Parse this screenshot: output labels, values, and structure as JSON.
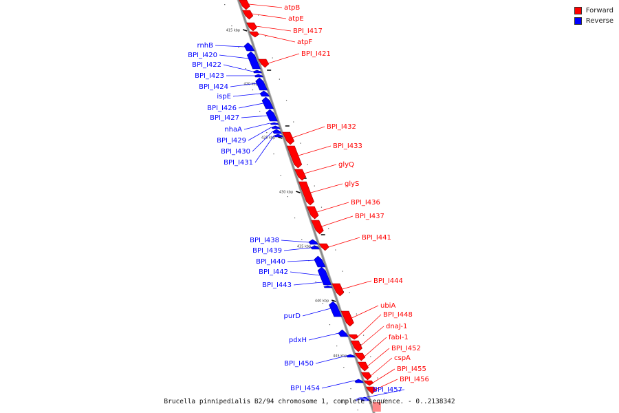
{
  "colors": {
    "forward": "#ff0000",
    "reverse": "#0000ff",
    "backbone": "#888888"
  },
  "legend": [
    {
      "label": "Forward",
      "color": "#ff0000"
    },
    {
      "label": "Reverse",
      "color": "#0000ff"
    }
  ],
  "caption": "Brucella pinnipedialis B2/94 chromosome 1, complete sequence. - 0..2138342",
  "ticks": [
    "415 kbp",
    "420 kbp",
    "425 kbp",
    "430 kbp",
    "435 kbp",
    "440 kbp",
    "445 kbp"
  ],
  "genes": [
    {
      "name": "atpB",
      "strand": "forward"
    },
    {
      "name": "atpE",
      "strand": "forward"
    },
    {
      "name": "BPI_I417",
      "strand": "forward"
    },
    {
      "name": "atpF",
      "strand": "forward"
    },
    {
      "name": "BPI_I421",
      "strand": "forward"
    },
    {
      "name": "rnhB",
      "strand": "reverse"
    },
    {
      "name": "BPI_I420",
      "strand": "reverse"
    },
    {
      "name": "BPI_I422",
      "strand": "reverse"
    },
    {
      "name": "BPI_I423",
      "strand": "reverse"
    },
    {
      "name": "BPI_I424",
      "strand": "reverse"
    },
    {
      "name": "ispE",
      "strand": "reverse"
    },
    {
      "name": "BPI_I426",
      "strand": "reverse"
    },
    {
      "name": "BPI_I427",
      "strand": "reverse"
    },
    {
      "name": "nhaA",
      "strand": "reverse"
    },
    {
      "name": "BPI_I429",
      "strand": "reverse"
    },
    {
      "name": "BPI_I430",
      "strand": "reverse"
    },
    {
      "name": "BPI_I431",
      "strand": "reverse"
    },
    {
      "name": "BPI_I432",
      "strand": "forward"
    },
    {
      "name": "BPI_I433",
      "strand": "forward"
    },
    {
      "name": "glyQ",
      "strand": "forward"
    },
    {
      "name": "glyS",
      "strand": "forward"
    },
    {
      "name": "BPI_I436",
      "strand": "forward"
    },
    {
      "name": "BPI_I437",
      "strand": "forward"
    },
    {
      "name": "BPI_I441",
      "strand": "forward"
    },
    {
      "name": "BPI_I438",
      "strand": "reverse"
    },
    {
      "name": "BPI_I439",
      "strand": "reverse"
    },
    {
      "name": "BPI_I440",
      "strand": "reverse"
    },
    {
      "name": "BPI_I442",
      "strand": "reverse"
    },
    {
      "name": "BPI_I443",
      "strand": "reverse"
    },
    {
      "name": "BPI_I444",
      "strand": "forward"
    },
    {
      "name": "purD",
      "strand": "reverse"
    },
    {
      "name": "ubiA",
      "strand": "forward"
    },
    {
      "name": "BPI_I448",
      "strand": "forward"
    },
    {
      "name": "dnaJ-1",
      "strand": "forward"
    },
    {
      "name": "pdxH",
      "strand": "reverse"
    },
    {
      "name": "fabI-1",
      "strand": "forward"
    },
    {
      "name": "BPI_I452",
      "strand": "forward"
    },
    {
      "name": "BPI_I450",
      "strand": "reverse"
    },
    {
      "name": "cspA",
      "strand": "forward"
    },
    {
      "name": "BPI_I455",
      "strand": "forward"
    },
    {
      "name": "BPI_I456",
      "strand": "forward"
    },
    {
      "name": "BPI_I454",
      "strand": "reverse"
    },
    {
      "name": "BPI_I457",
      "strand": "reverse"
    }
  ]
}
